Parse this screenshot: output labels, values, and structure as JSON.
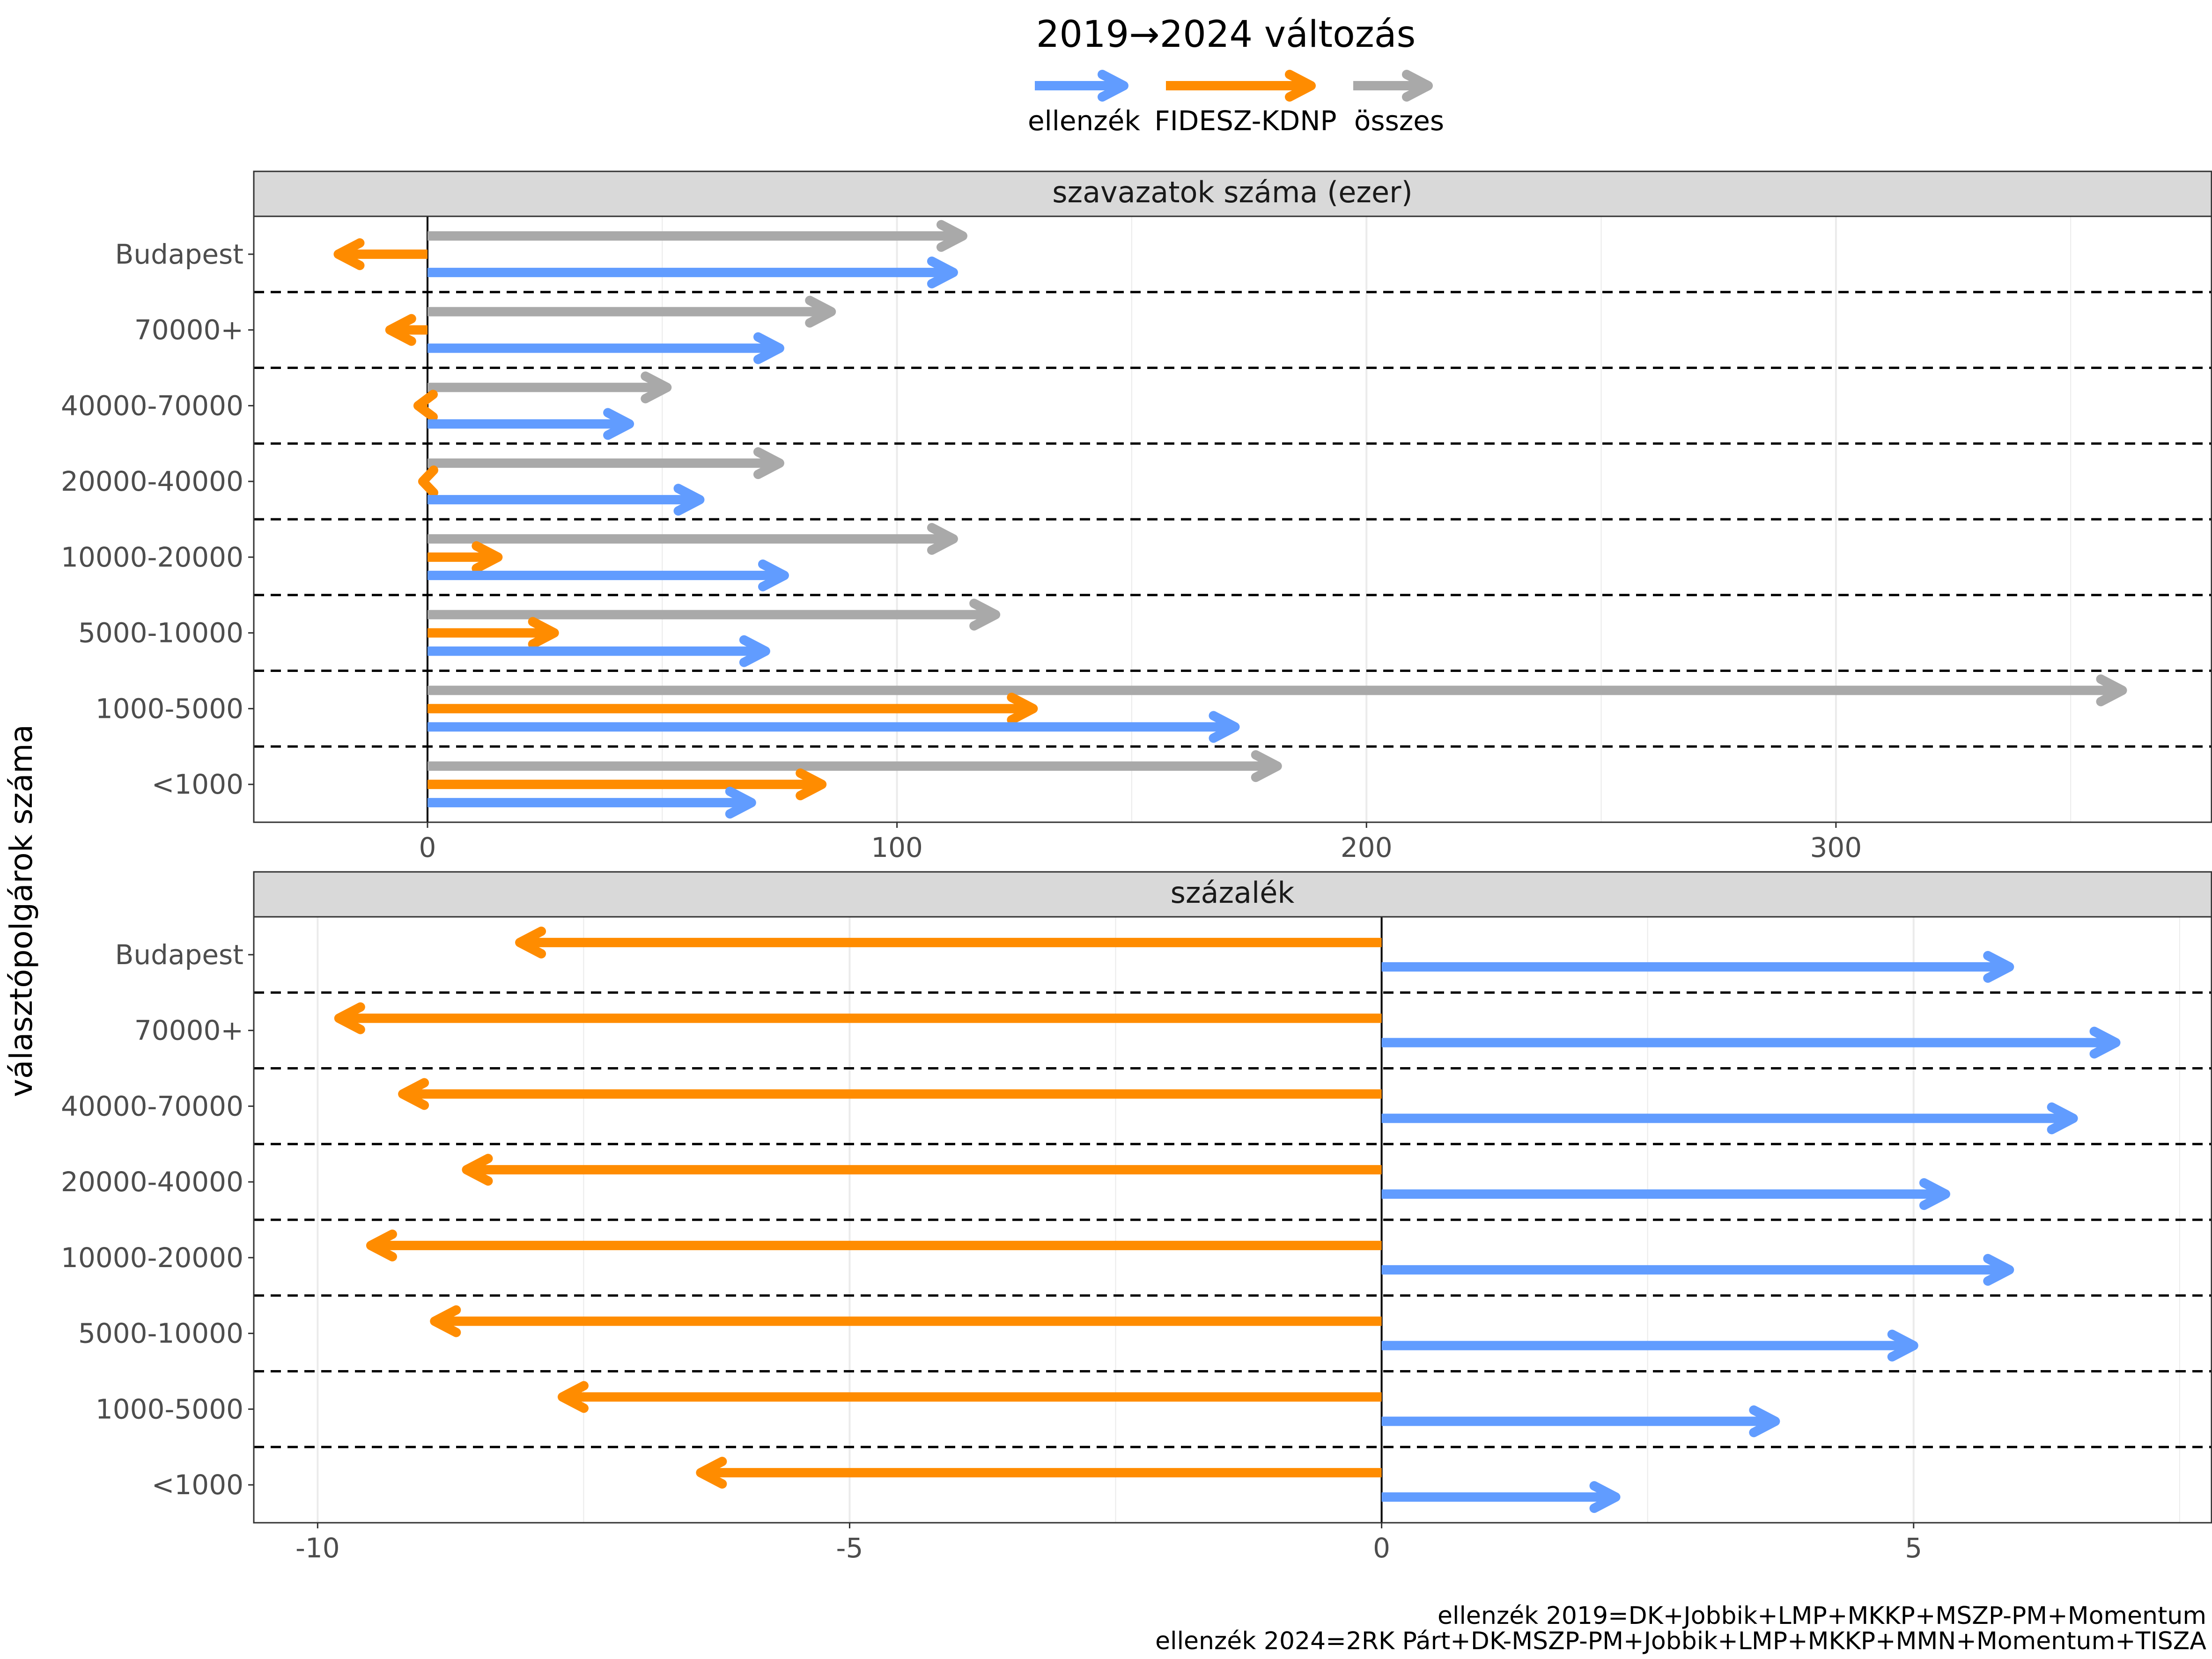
{
  "legend": {
    "title": "2019→2024 változás",
    "items": [
      {
        "label": "ellenzék",
        "color": "#619CFF"
      },
      {
        "label": "FIDESZ-KDNP",
        "color": "#FF8C00"
      },
      {
        "label": "összes",
        "color": "#A9A9A9"
      }
    ]
  },
  "ylabel": "választópolgárok száma",
  "caption": [
    "ellenzék 2019=DK+Jobbik+LMP+MKKP+MSZP-PM+Momentum",
    "ellenzék 2024=2RK Párt+DK-MSZP-PM+Jobbik+LMP+MKKP+MMN+Momentum+TISZA"
  ],
  "chart_data": [
    {
      "type": "arrow",
      "panel_title": "szavazatok száma (ezer)",
      "categories": [
        "Budapest",
        "70000+",
        "40000-70000",
        "20000-40000",
        "10000-20000",
        "5000-10000",
        "1000-5000",
        "<1000"
      ],
      "xlim": [
        -37,
        380
      ],
      "xticks": [
        0,
        100,
        200,
        300
      ],
      "tick_labels": [
        "0",
        "100",
        "200",
        "300"
      ],
      "series": [
        {
          "name": "összes",
          "color": "#A9A9A9",
          "start": 0,
          "values": [
            114,
            86,
            51,
            75,
            112,
            121,
            361,
            181
          ]
        },
        {
          "name": "FIDESZ-KDNP",
          "color": "#FF8C00",
          "start": 0,
          "values": [
            -19,
            -8,
            -2,
            -1,
            15,
            27,
            129,
            84
          ]
        },
        {
          "name": "ellenzék",
          "color": "#619CFF",
          "start": 0,
          "values": [
            112,
            75,
            43,
            58,
            76,
            72,
            172,
            69
          ]
        }
      ]
    },
    {
      "type": "arrow",
      "panel_title": "százalék",
      "categories": [
        "Budapest",
        "70000+",
        "40000-70000",
        "20000-40000",
        "10000-20000",
        "5000-10000",
        "1000-5000",
        "<1000"
      ],
      "xlim": [
        -10.6,
        7.8
      ],
      "xticks": [
        -10,
        -5,
        0,
        5
      ],
      "tick_labels": [
        "-10",
        "-5",
        "0",
        "5"
      ],
      "series": [
        {
          "name": "FIDESZ-KDNP",
          "color": "#FF8C00",
          "start": 0,
          "values": [
            -8.1,
            -9.8,
            -9.2,
            -8.6,
            -9.5,
            -8.9,
            -7.7,
            -6.4
          ]
        },
        {
          "name": "ellenzék",
          "color": "#619CFF",
          "start": 0,
          "values": [
            5.9,
            6.9,
            6.5,
            5.3,
            5.9,
            5.0,
            3.7,
            2.2
          ]
        }
      ]
    }
  ]
}
